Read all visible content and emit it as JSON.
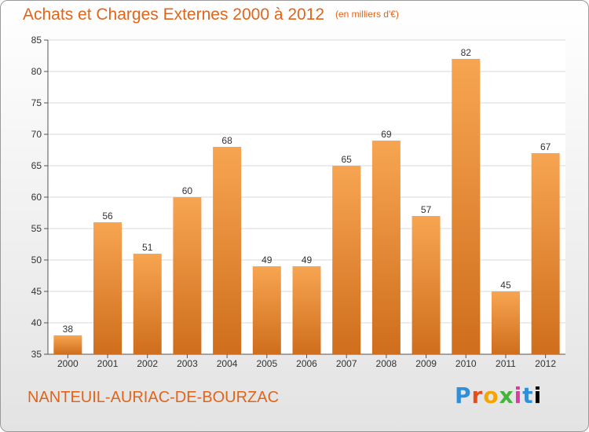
{
  "title": "Achats et Charges Externes 2000 à 2012",
  "unit": "(en milliers d'€)",
  "commune": "NANTEUIL-AURIAC-DE-BOURZAC",
  "logo": [
    "P",
    "r",
    "o",
    "x",
    "i",
    "t",
    "i"
  ],
  "colors": {
    "bar_top": "#f7a552",
    "bar_bottom": "#cf6e1c",
    "text_accent": "#e0651a"
  },
  "chart_data": {
    "type": "bar",
    "title": "Achats et Charges Externes 2000 à 2012",
    "categories": [
      "2000",
      "2001",
      "2002",
      "2003",
      "2004",
      "2005",
      "2006",
      "2007",
      "2008",
      "2009",
      "2010",
      "2011",
      "2012"
    ],
    "values": [
      38,
      56,
      51,
      60,
      68,
      49,
      49,
      65,
      69,
      57,
      82,
      45,
      67
    ],
    "ylim": [
      35,
      85
    ],
    "yticks": [
      35,
      40,
      45,
      50,
      55,
      60,
      65,
      70,
      75,
      80,
      85
    ],
    "grid": true,
    "xlabel": "",
    "ylabel": ""
  }
}
